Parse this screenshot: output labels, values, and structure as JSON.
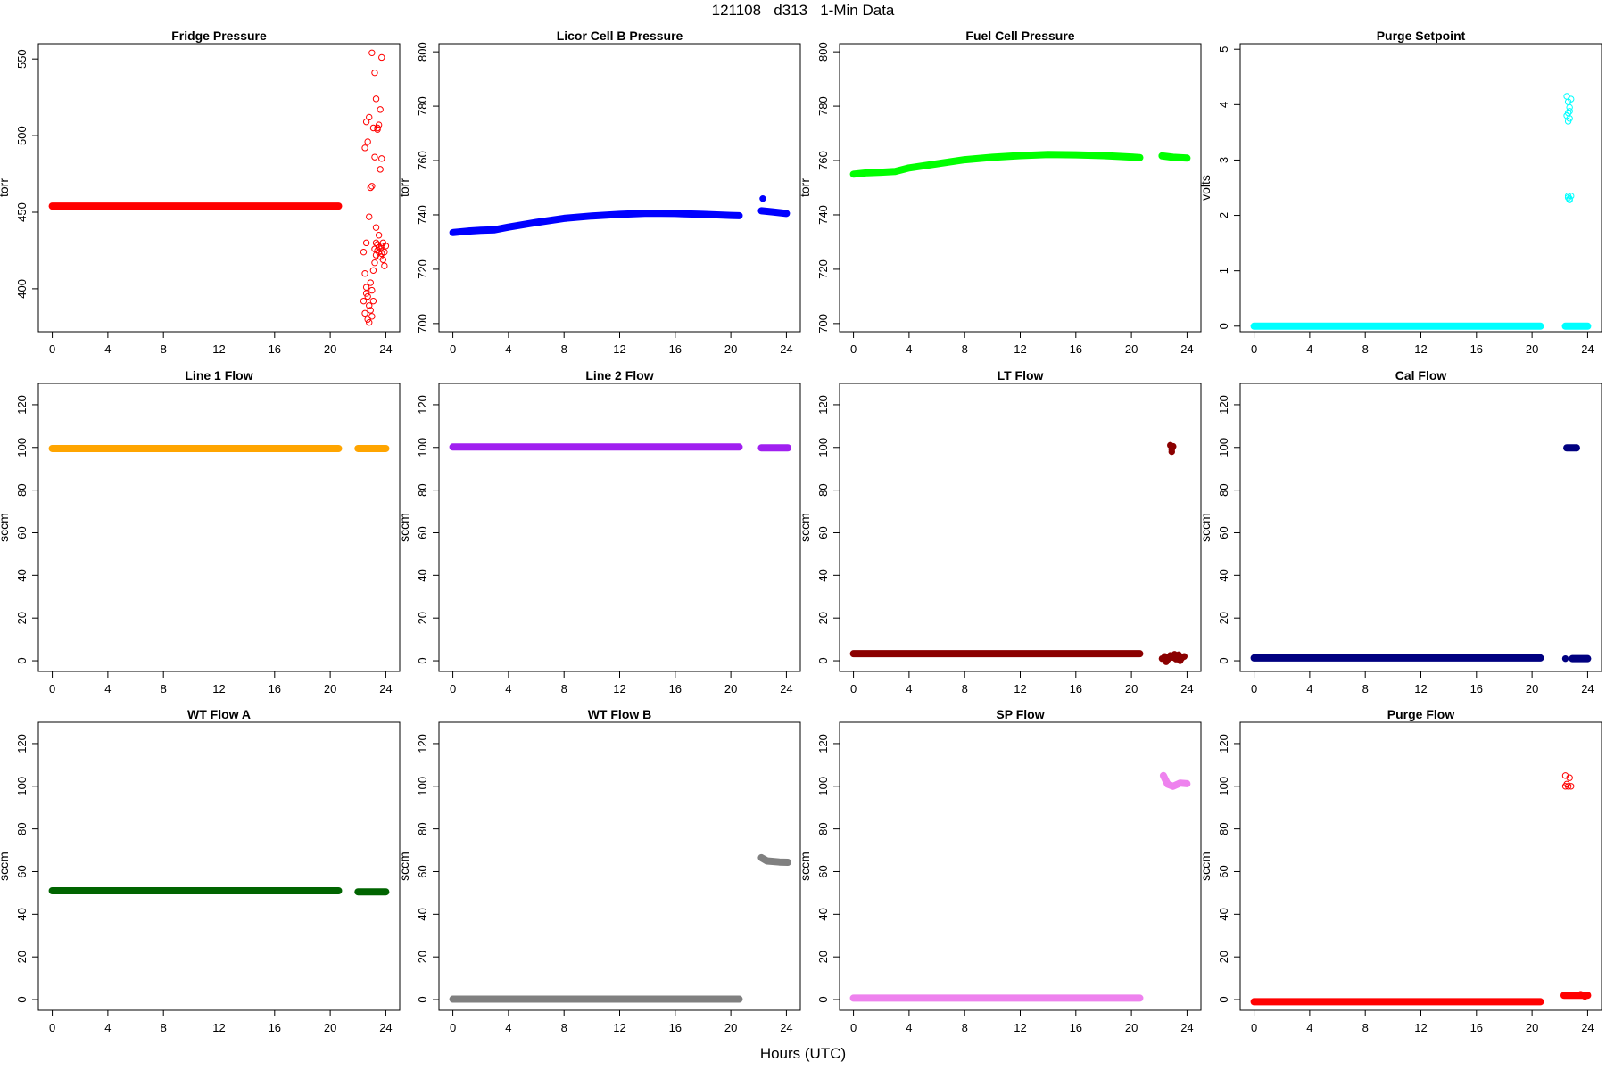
{
  "figure": {
    "title": "121108   d313   1-Min Data",
    "xlabel": "Hours (UTC)"
  },
  "chart_data": [
    {
      "type": "scatter",
      "title": "Fridge Pressure",
      "ylabel": "torr",
      "xlim": [
        -1,
        25
      ],
      "ylim": [
        372,
        560
      ],
      "xticks": [
        0,
        4,
        8,
        12,
        16,
        20,
        24
      ],
      "yticks": [
        400,
        450,
        500,
        550
      ],
      "color": "#ff0000",
      "marker": "open",
      "segments": [
        {
          "x0": 0,
          "x1": 20.6,
          "y0": 454,
          "y1": 454
        }
      ],
      "points": [
        [
          22.4,
          424
        ],
        [
          22.4,
          392
        ],
        [
          22.5,
          384
        ],
        [
          22.5,
          410
        ],
        [
          22.6,
          401
        ],
        [
          22.6,
          397
        ],
        [
          22.7,
          380
        ],
        [
          22.7,
          395
        ],
        [
          22.8,
          378
        ],
        [
          22.8,
          389
        ],
        [
          22.9,
          386
        ],
        [
          22.9,
          404
        ],
        [
          23.0,
          399
        ],
        [
          23.0,
          382
        ],
        [
          23.1,
          392
        ],
        [
          23.1,
          412
        ],
        [
          23.2,
          417
        ],
        [
          23.2,
          426
        ],
        [
          23.3,
          422
        ],
        [
          23.3,
          430
        ],
        [
          23.4,
          425
        ],
        [
          23.4,
          429
        ],
        [
          23.5,
          424
        ],
        [
          23.5,
          427
        ],
        [
          23.6,
          421
        ],
        [
          23.6,
          426
        ],
        [
          23.7,
          428
        ],
        [
          23.7,
          423
        ],
        [
          23.8,
          419
        ],
        [
          23.8,
          430
        ],
        [
          23.9,
          424
        ],
        [
          23.9,
          415
        ],
        [
          24.0,
          428
        ],
        [
          22.5,
          492
        ],
        [
          22.6,
          509
        ],
        [
          22.7,
          496
        ],
        [
          22.8,
          512
        ],
        [
          22.8,
          447
        ],
        [
          22.9,
          466
        ],
        [
          23.0,
          467
        ],
        [
          23.2,
          541
        ],
        [
          23.2,
          486
        ],
        [
          23.3,
          524
        ],
        [
          23.4,
          505
        ],
        [
          23.5,
          507
        ],
        [
          23.6,
          478
        ],
        [
          23.7,
          485
        ],
        [
          23.7,
          551
        ],
        [
          23.0,
          554
        ],
        [
          23.1,
          505
        ],
        [
          23.4,
          504
        ],
        [
          23.6,
          517
        ],
        [
          22.6,
          430
        ],
        [
          23.3,
          440
        ],
        [
          23.5,
          435
        ]
      ]
    },
    {
      "type": "scatter",
      "title": "Licor Cell B Pressure",
      "ylabel": "torr",
      "xlim": [
        -1,
        25
      ],
      "ylim": [
        697,
        803
      ],
      "xticks": [
        0,
        4,
        8,
        12,
        16,
        20,
        24
      ],
      "yticks": [
        700,
        720,
        740,
        760,
        780,
        800
      ],
      "color": "#0000ff",
      "marker": "filled",
      "curve": [
        [
          0,
          733.5
        ],
        [
          1,
          734
        ],
        [
          2,
          734.3
        ],
        [
          3,
          734.5
        ],
        [
          4,
          735.5
        ],
        [
          6,
          737.2
        ],
        [
          8,
          738.7
        ],
        [
          10,
          739.6
        ],
        [
          12,
          740.2
        ],
        [
          14,
          740.6
        ],
        [
          16,
          740.5
        ],
        [
          18,
          740.2
        ],
        [
          20,
          739.8
        ],
        [
          20.6,
          739.7
        ]
      ],
      "curve2": [
        [
          22.2,
          741.5
        ],
        [
          23,
          741.1
        ],
        [
          24,
          740.5
        ]
      ],
      "points": [
        [
          22.3,
          746
        ]
      ]
    },
    {
      "type": "scatter",
      "title": "Fuel Cell Pressure",
      "ylabel": "torr",
      "xlim": [
        -1,
        25
      ],
      "ylim": [
        697,
        803
      ],
      "xticks": [
        0,
        4,
        8,
        12,
        16,
        20,
        24
      ],
      "yticks": [
        700,
        720,
        740,
        760,
        780,
        800
      ],
      "color": "#00ff00",
      "marker": "filled",
      "curve": [
        [
          0,
          755
        ],
        [
          1,
          755.5
        ],
        [
          2,
          755.7
        ],
        [
          3,
          756
        ],
        [
          4,
          757.3
        ],
        [
          6,
          758.8
        ],
        [
          8,
          760.3
        ],
        [
          10,
          761.2
        ],
        [
          12,
          761.8
        ],
        [
          14,
          762.2
        ],
        [
          16,
          762.1
        ],
        [
          18,
          761.8
        ],
        [
          20,
          761.3
        ],
        [
          20.6,
          761.1
        ]
      ],
      "curve2": [
        [
          22.2,
          761.7
        ],
        [
          23,
          761.2
        ],
        [
          24,
          760.9
        ]
      ],
      "points": []
    },
    {
      "type": "scatter",
      "title": "Purge Setpoint",
      "ylabel": "volts",
      "xlim": [
        -1,
        25
      ],
      "ylim": [
        -0.1,
        5.1
      ],
      "xticks": [
        0,
        4,
        8,
        12,
        16,
        20,
        24
      ],
      "yticks": [
        0,
        1,
        2,
        3,
        4,
        5
      ],
      "color": "#00ffff",
      "marker": "open",
      "segments": [
        {
          "x0": 0,
          "x1": 20.6,
          "y0": 0,
          "y1": 0
        },
        {
          "x0": 22.4,
          "x1": 24,
          "y0": 0,
          "y1": 0
        }
      ],
      "points": [
        [
          22.5,
          4.15
        ],
        [
          22.6,
          4.05
        ],
        [
          22.7,
          3.95
        ],
        [
          22.6,
          3.85
        ],
        [
          22.7,
          3.75
        ],
        [
          22.6,
          3.7
        ],
        [
          22.7,
          3.88
        ],
        [
          22.8,
          4.1
        ],
        [
          22.5,
          3.8
        ],
        [
          22.6,
          2.35
        ],
        [
          22.7,
          2.3
        ],
        [
          22.8,
          2.35
        ],
        [
          22.7,
          2.28
        ],
        [
          22.6,
          2.32
        ]
      ]
    },
    {
      "type": "scatter",
      "title": "Line 1 Flow",
      "ylabel": "sccm",
      "xlim": [
        -1,
        25
      ],
      "ylim": [
        -5,
        130
      ],
      "xticks": [
        0,
        4,
        8,
        12,
        16,
        20,
        24
      ],
      "yticks": [
        0,
        20,
        40,
        60,
        80,
        100,
        120
      ],
      "color": "#ffa500",
      "marker": "filled",
      "segments": [
        {
          "x0": 0,
          "x1": 20.6,
          "y0": 99.5,
          "y1": 99.5
        },
        {
          "x0": 22,
          "x1": 24,
          "y0": 99.5,
          "y1": 99.5
        }
      ],
      "points": []
    },
    {
      "type": "scatter",
      "title": "Line 2 Flow",
      "ylabel": "sccm",
      "xlim": [
        -1,
        25
      ],
      "ylim": [
        -5,
        130
      ],
      "xticks": [
        0,
        4,
        8,
        12,
        16,
        20,
        24
      ],
      "yticks": [
        0,
        20,
        40,
        60,
        80,
        100,
        120
      ],
      "color": "#a020f0",
      "marker": "filled",
      "segments": [
        {
          "x0": 0,
          "x1": 20.6,
          "y0": 100.2,
          "y1": 100.2
        },
        {
          "x0": 22.2,
          "x1": 24.1,
          "y0": 99.8,
          "y1": 99.8
        }
      ],
      "points": []
    },
    {
      "type": "scatter",
      "title": "LT Flow",
      "ylabel": "sccm",
      "xlim": [
        -1,
        25
      ],
      "ylim": [
        -5,
        130
      ],
      "xticks": [
        0,
        4,
        8,
        12,
        16,
        20,
        24
      ],
      "yticks": [
        0,
        20,
        40,
        60,
        80,
        100,
        120
      ],
      "color": "#8b0000",
      "marker": "filled",
      "segments": [
        {
          "x0": 0,
          "x1": 20.6,
          "y0": 3.3,
          "y1": 3.3
        }
      ],
      "points": [
        [
          22.2,
          1
        ],
        [
          22.4,
          2
        ],
        [
          22.6,
          0.5
        ],
        [
          22.8,
          2.5
        ],
        [
          23,
          1.5
        ],
        [
          23.2,
          0.8
        ],
        [
          23.4,
          2.8
        ],
        [
          23.6,
          1
        ],
        [
          23.8,
          2
        ],
        [
          22.5,
          -0.5
        ],
        [
          23.1,
          3
        ],
        [
          23.5,
          0
        ],
        [
          22.8,
          101
        ],
        [
          22.9,
          99
        ],
        [
          23.0,
          100.5
        ],
        [
          22.9,
          98
        ]
      ]
    },
    {
      "type": "scatter",
      "title": "Cal Flow",
      "ylabel": "sccm",
      "xlim": [
        -1,
        25
      ],
      "ylim": [
        -5,
        130
      ],
      "xticks": [
        0,
        4,
        8,
        12,
        16,
        20,
        24
      ],
      "yticks": [
        0,
        20,
        40,
        60,
        80,
        100,
        120
      ],
      "color": "#000080",
      "marker": "filled",
      "segments": [
        {
          "x0": 0,
          "x1": 20.6,
          "y0": 1.3,
          "y1": 1.3
        },
        {
          "x0": 22.9,
          "x1": 24,
          "y0": 1.0,
          "y1": 1.0
        },
        {
          "x0": 22.5,
          "x1": 23.2,
          "y0": 99.8,
          "y1": 99.8
        }
      ],
      "points": [
        [
          22.4,
          1
        ]
      ]
    },
    {
      "type": "scatter",
      "title": "WT Flow A",
      "ylabel": "sccm",
      "xlim": [
        -1,
        25
      ],
      "ylim": [
        -5,
        130
      ],
      "xticks": [
        0,
        4,
        8,
        12,
        16,
        20,
        24
      ],
      "yticks": [
        0,
        20,
        40,
        60,
        80,
        100,
        120
      ],
      "color": "#006400",
      "marker": "filled",
      "segments": [
        {
          "x0": 0,
          "x1": 20.6,
          "y0": 51,
          "y1": 51
        },
        {
          "x0": 22,
          "x1": 24,
          "y0": 50.5,
          "y1": 50.5
        }
      ],
      "points": []
    },
    {
      "type": "scatter",
      "title": "WT Flow B",
      "ylabel": "sccm",
      "xlim": [
        -1,
        25
      ],
      "ylim": [
        -5,
        130
      ],
      "xticks": [
        0,
        4,
        8,
        12,
        16,
        20,
        24
      ],
      "yticks": [
        0,
        20,
        40,
        60,
        80,
        100,
        120
      ],
      "color": "#808080",
      "marker": "filled",
      "segments": [
        {
          "x0": 0,
          "x1": 20.6,
          "y0": 0.2,
          "y1": 0.2
        }
      ],
      "curve2": [
        [
          22.2,
          66.5
        ],
        [
          22.6,
          65
        ],
        [
          23.5,
          64.5
        ],
        [
          24.1,
          64.4
        ]
      ],
      "points": []
    },
    {
      "type": "scatter",
      "title": "SP Flow",
      "ylabel": "sccm",
      "xlim": [
        -1,
        25
      ],
      "ylim": [
        -5,
        130
      ],
      "xticks": [
        0,
        4,
        8,
        12,
        16,
        20,
        24
      ],
      "yticks": [
        0,
        20,
        40,
        60,
        80,
        100,
        120
      ],
      "color": "#ee82ee",
      "marker": "filled",
      "segments": [
        {
          "x0": 0,
          "x1": 20.6,
          "y0": 0.7,
          "y1": 0.7
        }
      ],
      "curve2": [
        [
          22.3,
          105
        ],
        [
          22.6,
          101
        ],
        [
          23,
          100
        ],
        [
          23.5,
          101.5
        ],
        [
          24,
          101.2
        ]
      ],
      "points": []
    },
    {
      "type": "scatter",
      "title": "Purge Flow",
      "ylabel": "sccm",
      "xlim": [
        -1,
        25
      ],
      "ylim": [
        -5,
        130
      ],
      "xticks": [
        0,
        4,
        8,
        12,
        16,
        20,
        24
      ],
      "yticks": [
        0,
        20,
        40,
        60,
        80,
        100,
        120
      ],
      "color": "#ff0000",
      "marker": "open",
      "segments": [
        {
          "x0": 0,
          "x1": 20.6,
          "y0": -1,
          "y1": -1
        },
        {
          "x0": 22.3,
          "x1": 24,
          "y0": 2,
          "y1": 2
        }
      ],
      "points": [
        [
          22.4,
          105
        ],
        [
          22.7,
          104
        ],
        [
          22.4,
          100
        ],
        [
          22.6,
          100
        ],
        [
          22.8,
          100
        ],
        [
          22.5,
          101
        ],
        [
          23.5,
          2.5
        ],
        [
          23.8,
          1.5
        ]
      ]
    }
  ]
}
